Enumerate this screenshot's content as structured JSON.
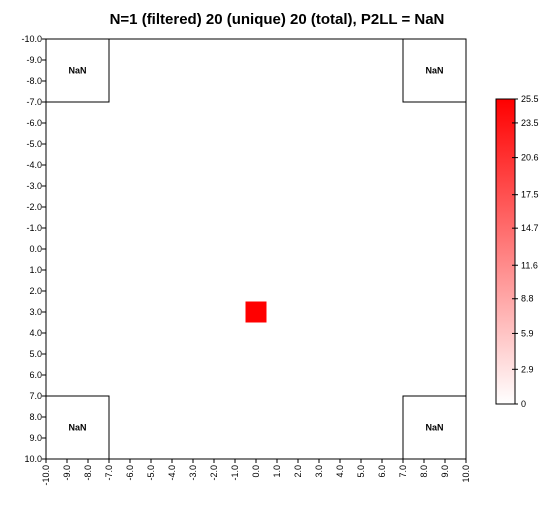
{
  "chart_data": {
    "type": "heatmap",
    "title": "N=1 (filtered) 20 (unique) 20 (total), P2LL = NaN",
    "xlim": [
      -10.0,
      10.0
    ],
    "ylim": [
      -10.0,
      10.0
    ],
    "y_axis_inverted": true,
    "grid": false,
    "x_ticks": [
      "-10.0",
      "-9.0",
      "-8.0",
      "-7.0",
      "-6.0",
      "-5.0",
      "-4.0",
      "-3.0",
      "-2.0",
      "-1.0",
      "0.0",
      "1.0",
      "2.0",
      "3.0",
      "4.0",
      "5.0",
      "6.0",
      "7.0",
      "8.0",
      "9.0",
      "10.0"
    ],
    "y_ticks": [
      "-10.0",
      "-9.0",
      "-8.0",
      "-7.0",
      "-6.0",
      "-5.0",
      "-4.0",
      "-3.0",
      "-2.0",
      "-1.0",
      "0.0",
      "1.0",
      "2.0",
      "3.0",
      "4.0",
      "5.0",
      "6.0",
      "7.0",
      "8.0",
      "9.0",
      "10.0"
    ],
    "cells": [
      {
        "x": 0.0,
        "y": 3.0,
        "value": 25.5,
        "color": "#ff0000"
      }
    ],
    "nan_boxes": [
      {
        "label": "NaN",
        "x_range": [
          -10.0,
          -7.0
        ],
        "y_range": [
          -10.0,
          -7.0
        ]
      },
      {
        "label": "NaN",
        "x_range": [
          7.0,
          10.0
        ],
        "y_range": [
          -10.0,
          -7.0
        ]
      },
      {
        "label": "NaN",
        "x_range": [
          -10.0,
          -7.0
        ],
        "y_range": [
          7.0,
          10.0
        ]
      },
      {
        "label": "NaN",
        "x_range": [
          7.0,
          10.0
        ],
        "y_range": [
          7.0,
          10.0
        ]
      }
    ],
    "colorbar": {
      "min": 0,
      "max": 25.5,
      "colors": [
        "#ffffff",
        "#ff0000"
      ],
      "ticks": [
        {
          "value": 25.5,
          "label": "25.5"
        },
        {
          "value": 23.5,
          "label": "23.5"
        },
        {
          "value": 20.6,
          "label": "20.6"
        },
        {
          "value": 17.5,
          "label": "17.5"
        },
        {
          "value": 14.7,
          "label": "14.7"
        },
        {
          "value": 11.6,
          "label": "11.6"
        },
        {
          "value": 8.8,
          "label": "8.8"
        },
        {
          "value": 5.9,
          "label": "5.9"
        },
        {
          "value": 2.9,
          "label": "2.9"
        },
        {
          "value": 0,
          "label": "0"
        }
      ]
    }
  }
}
